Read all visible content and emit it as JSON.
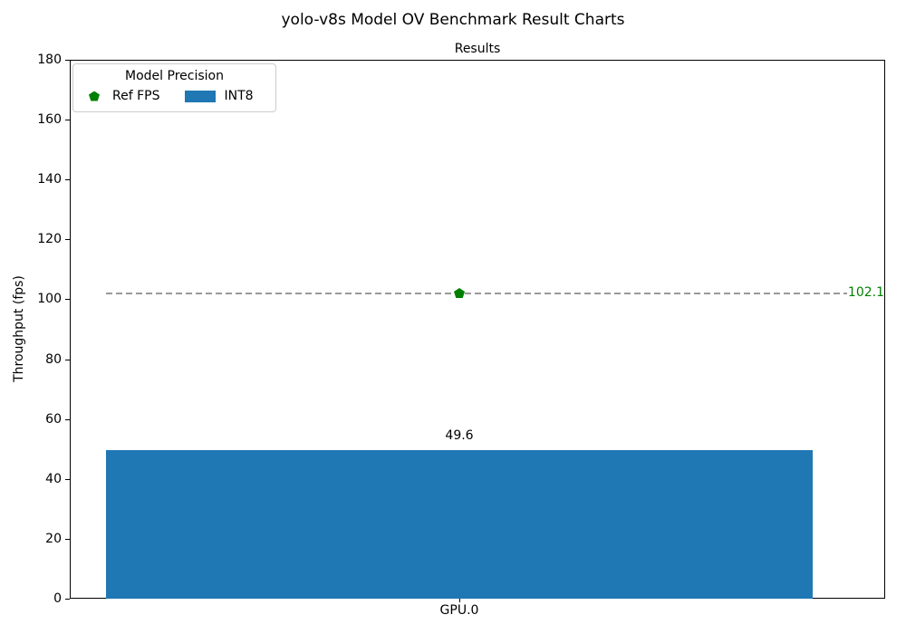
{
  "figure": {
    "title": "yolo-v8s Model OV Benchmark Result Charts"
  },
  "chart_data": {
    "type": "bar",
    "title": "Results",
    "xlabel": "",
    "ylabel": "Throughput (fps)",
    "categories": [
      "GPU.0"
    ],
    "series": [
      {
        "name": "INT8",
        "type": "bar",
        "values": [
          49.6
        ],
        "color": "#1f77b4"
      },
      {
        "name": "Ref FPS",
        "type": "reference-line",
        "values": [
          102.1
        ],
        "color": "#008000",
        "marker": "pentagon",
        "line_style": "dashed",
        "line_color": "#999999"
      }
    ],
    "ylim": [
      0,
      180
    ],
    "yticks": [
      0,
      20,
      40,
      60,
      80,
      100,
      120,
      140,
      160,
      180
    ],
    "grid": false,
    "annotations": {
      "bar_value_label": "49.6",
      "ref_value_label": "102.1"
    },
    "legend": {
      "title": "Model Precision",
      "position": "upper left",
      "entries": [
        {
          "label": "Ref FPS",
          "marker": "pentagon",
          "color": "#008000"
        },
        {
          "label": "INT8",
          "marker": "swatch",
          "color": "#1f77b4"
        }
      ]
    }
  }
}
